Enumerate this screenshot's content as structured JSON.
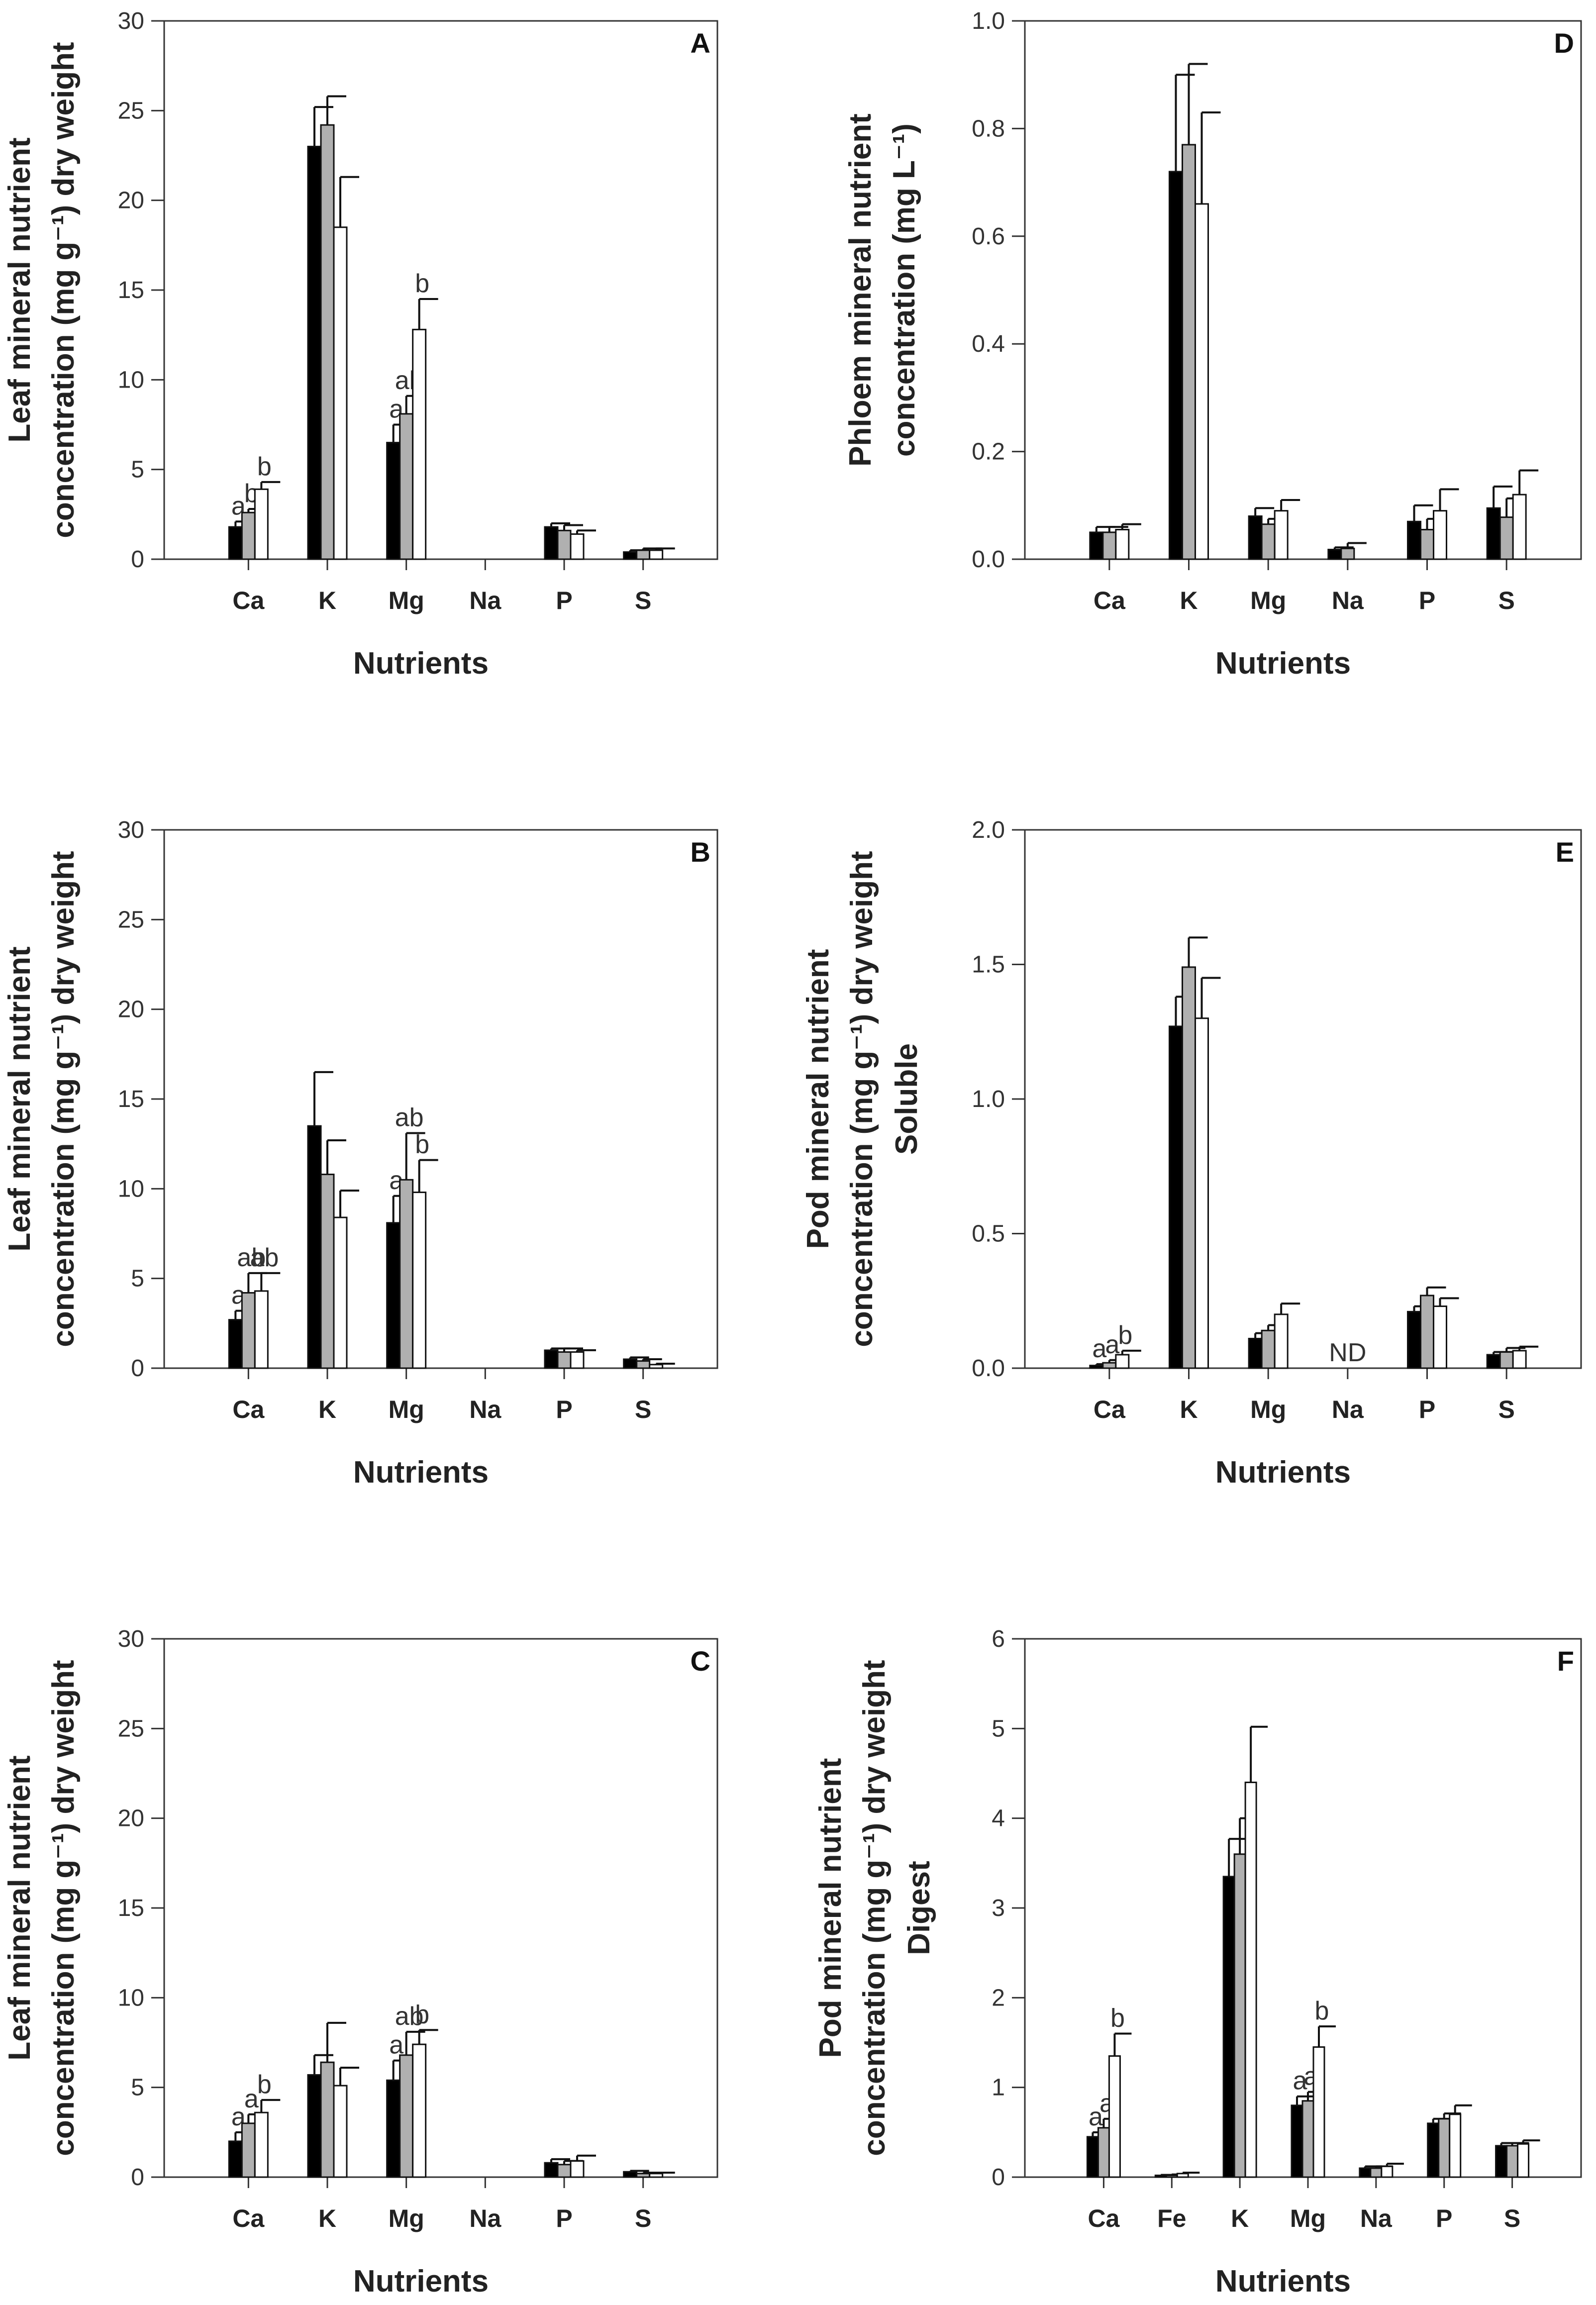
{
  "chart_data": [
    {
      "panel": "A",
      "type": "bar",
      "ylabel_lines": [
        "Leaf mineral nutrient",
        "concentration (mg g⁻¹) dry weight"
      ],
      "xlabel": "Nutrients",
      "categories": [
        "Ca",
        "K",
        "Mg",
        "Na",
        "P",
        "S"
      ],
      "ylim": [
        0,
        30
      ],
      "yticks": [
        0,
        5,
        10,
        15,
        20,
        25,
        30
      ],
      "series_colors": [
        "#000000",
        "#b0b0b0",
        "#ffffff"
      ],
      "values": [
        [
          1.8,
          2.6,
          3.9
        ],
        [
          23.0,
          24.2,
          18.5
        ],
        [
          6.5,
          8.1,
          12.8
        ],
        [
          0,
          0,
          0
        ],
        [
          1.8,
          1.6,
          1.4
        ],
        [
          0.4,
          0.5,
          0.5
        ]
      ],
      "errors": [
        [
          0.3,
          0.2,
          0.4
        ],
        [
          2.2,
          1.6,
          2.8
        ],
        [
          1.0,
          1.0,
          1.7
        ],
        [
          0,
          0,
          0
        ],
        [
          0.2,
          0.3,
          0.2
        ],
        [
          0.1,
          0.1,
          0.1
        ]
      ],
      "letters": [
        [
          "a",
          "b",
          "b"
        ],
        [
          "",
          "",
          ""
        ],
        [
          "a",
          "ab",
          "b"
        ],
        [
          "",
          "",
          ""
        ],
        [
          "",
          "",
          ""
        ],
        [
          "",
          "",
          ""
        ]
      ]
    },
    {
      "panel": "D",
      "type": "bar",
      "ylabel_lines": [
        "Phloem mineral nutrient",
        "concentration (mg L⁻¹)"
      ],
      "xlabel": "Nutrients",
      "categories": [
        "Ca",
        "K",
        "Mg",
        "Na",
        "P",
        "S"
      ],
      "ylim": [
        0,
        1.0
      ],
      "yticks": [
        0.0,
        0.2,
        0.4,
        0.6,
        0.8,
        1.0
      ],
      "tick_decimals": 1,
      "series_colors": [
        "#000000",
        "#b0b0b0",
        "#ffffff"
      ],
      "values": [
        [
          0.05,
          0.05,
          0.055
        ],
        [
          0.72,
          0.77,
          0.66
        ],
        [
          0.08,
          0.065,
          0.09
        ],
        [
          0.018,
          0.02,
          0.0
        ],
        [
          0.07,
          0.055,
          0.09
        ],
        [
          0.095,
          0.078,
          0.12
        ]
      ],
      "errors": [
        [
          0.01,
          0.01,
          0.01
        ],
        [
          0.18,
          0.15,
          0.17
        ],
        [
          0.015,
          0.01,
          0.02
        ],
        [
          0.004,
          0.01,
          0.0
        ],
        [
          0.03,
          0.02,
          0.04
        ],
        [
          0.04,
          0.035,
          0.045
        ]
      ],
      "letters": [
        [
          "",
          "",
          ""
        ],
        [
          "",
          "",
          ""
        ],
        [
          "",
          "",
          ""
        ],
        [
          "",
          "",
          ""
        ],
        [
          "",
          "",
          ""
        ],
        [
          "",
          "",
          ""
        ]
      ]
    },
    {
      "panel": "B",
      "type": "bar",
      "ylabel_lines": [
        "Leaf mineral nutrient",
        "concentration (mg g⁻¹) dry weight"
      ],
      "xlabel": "Nutrients",
      "categories": [
        "Ca",
        "K",
        "Mg",
        "Na",
        "P",
        "S"
      ],
      "ylim": [
        0,
        30
      ],
      "yticks": [
        0,
        5,
        10,
        15,
        20,
        25,
        30
      ],
      "series_colors": [
        "#000000",
        "#b0b0b0",
        "#ffffff"
      ],
      "values": [
        [
          2.7,
          4.2,
          4.3
        ],
        [
          13.5,
          10.8,
          8.4
        ],
        [
          8.1,
          10.5,
          9.8
        ],
        [
          0,
          0,
          0
        ],
        [
          1.0,
          0.9,
          0.9
        ],
        [
          0.5,
          0.4,
          0.2
        ]
      ],
      "errors": [
        [
          0.5,
          1.1,
          1.0
        ],
        [
          3.0,
          1.9,
          1.5
        ],
        [
          1.5,
          2.6,
          1.8
        ],
        [
          0,
          0,
          0
        ],
        [
          0.1,
          0.2,
          0.1
        ],
        [
          0.1,
          0.1,
          0.05
        ]
      ],
      "letters": [
        [
          "a",
          "ab",
          "ab"
        ],
        [
          "",
          "",
          ""
        ],
        [
          "a",
          "ab",
          "b"
        ],
        [
          "",
          "",
          ""
        ],
        [
          "",
          "",
          ""
        ],
        [
          "",
          "",
          ""
        ]
      ]
    },
    {
      "panel": "E",
      "type": "bar",
      "ylabel_lines": [
        "Pod mineral nutrient",
        "concentration (mg g⁻¹) dry weight",
        "Soluble"
      ],
      "xlabel": "Nutrients",
      "categories": [
        "Ca",
        "K",
        "Mg",
        "Na",
        "P",
        "S"
      ],
      "ylim": [
        0,
        2.0
      ],
      "yticks": [
        0.0,
        0.5,
        1.0,
        1.5,
        2.0
      ],
      "tick_decimals": 1,
      "series_colors": [
        "#000000",
        "#b0b0b0",
        "#ffffff"
      ],
      "values": [
        [
          0.01,
          0.02,
          0.05
        ],
        [
          1.27,
          1.49,
          1.3
        ],
        [
          0.11,
          0.14,
          0.2
        ],
        [
          0,
          0,
          0
        ],
        [
          0.21,
          0.27,
          0.23
        ],
        [
          0.05,
          0.06,
          0.065
        ]
      ],
      "errors": [
        [
          0.005,
          0.01,
          0.015
        ],
        [
          0.11,
          0.11,
          0.15
        ],
        [
          0.02,
          0.02,
          0.04
        ],
        [
          0,
          0,
          0
        ],
        [
          0.02,
          0.03,
          0.03
        ],
        [
          0.01,
          0.015,
          0.015
        ]
      ],
      "letters": [
        [
          "a",
          "a",
          "b"
        ],
        [
          "",
          "",
          ""
        ],
        [
          "",
          "",
          ""
        ],
        [
          "",
          "",
          ""
        ],
        [
          "",
          "",
          ""
        ],
        [
          "",
          "",
          ""
        ]
      ],
      "text_annotations": [
        {
          "category": "Na",
          "text": "ND"
        }
      ]
    },
    {
      "panel": "C",
      "type": "bar",
      "ylabel_lines": [
        "Leaf mineral nutrient",
        "concentration (mg g⁻¹) dry weight"
      ],
      "xlabel": "Nutrients",
      "categories": [
        "Ca",
        "K",
        "Mg",
        "Na",
        "P",
        "S"
      ],
      "ylim": [
        0,
        30
      ],
      "yticks": [
        0,
        5,
        10,
        15,
        20,
        25,
        30
      ],
      "series_colors": [
        "#000000",
        "#b0b0b0",
        "#ffffff"
      ],
      "values": [
        [
          2.0,
          3.0,
          3.6
        ],
        [
          5.7,
          6.4,
          5.1
        ],
        [
          5.4,
          6.8,
          7.4
        ],
        [
          0,
          0,
          0
        ],
        [
          0.8,
          0.7,
          0.9
        ],
        [
          0.3,
          0.2,
          0.2
        ]
      ],
      "errors": [
        [
          0.5,
          0.5,
          0.7
        ],
        [
          1.1,
          2.2,
          1.0
        ],
        [
          1.1,
          1.3,
          0.8
        ],
        [
          0,
          0,
          0
        ],
        [
          0.2,
          0.2,
          0.3
        ],
        [
          0.05,
          0.05,
          0.05
        ]
      ],
      "letters": [
        [
          "a",
          "a",
          "b"
        ],
        [
          "",
          "",
          ""
        ],
        [
          "a",
          "ab",
          "b"
        ],
        [
          "",
          "",
          ""
        ],
        [
          "",
          "",
          ""
        ],
        [
          "",
          "",
          ""
        ]
      ]
    },
    {
      "panel": "F",
      "type": "bar",
      "ylabel_lines": [
        "Pod mineral nutrient",
        "concentration (mg g⁻¹) dry weight",
        "Digest"
      ],
      "xlabel": "Nutrients",
      "categories": [
        "Ca",
        "Fe",
        "K",
        "Mg",
        "Na",
        "P",
        "S"
      ],
      "ylim": [
        0,
        6
      ],
      "yticks": [
        0,
        1,
        2,
        3,
        4,
        5,
        6
      ],
      "series_colors": [
        "#000000",
        "#b0b0b0",
        "#ffffff"
      ],
      "values": [
        [
          0.45,
          0.55,
          1.35
        ],
        [
          0.02,
          0.02,
          0.04
        ],
        [
          3.35,
          3.6,
          4.4
        ],
        [
          0.8,
          0.85,
          1.45
        ],
        [
          0.1,
          0.1,
          0.12
        ],
        [
          0.6,
          0.65,
          0.7
        ],
        [
          0.35,
          0.35,
          0.37
        ]
      ],
      "errors": [
        [
          0.05,
          0.1,
          0.25
        ],
        [
          0.005,
          0.01,
          0.01
        ],
        [
          0.42,
          0.4,
          0.62
        ],
        [
          0.1,
          0.1,
          0.23
        ],
        [
          0.02,
          0.02,
          0.03
        ],
        [
          0.05,
          0.06,
          0.1
        ],
        [
          0.03,
          0.03,
          0.04
        ]
      ],
      "letters": [
        [
          "a",
          "a",
          "b"
        ],
        [
          "",
          "",
          ""
        ],
        [
          "",
          "",
          ""
        ],
        [
          "a",
          "a",
          "b"
        ],
        [
          "",
          "",
          ""
        ],
        [
          "",
          "",
          ""
        ],
        [
          "",
          "",
          ""
        ]
      ]
    }
  ]
}
